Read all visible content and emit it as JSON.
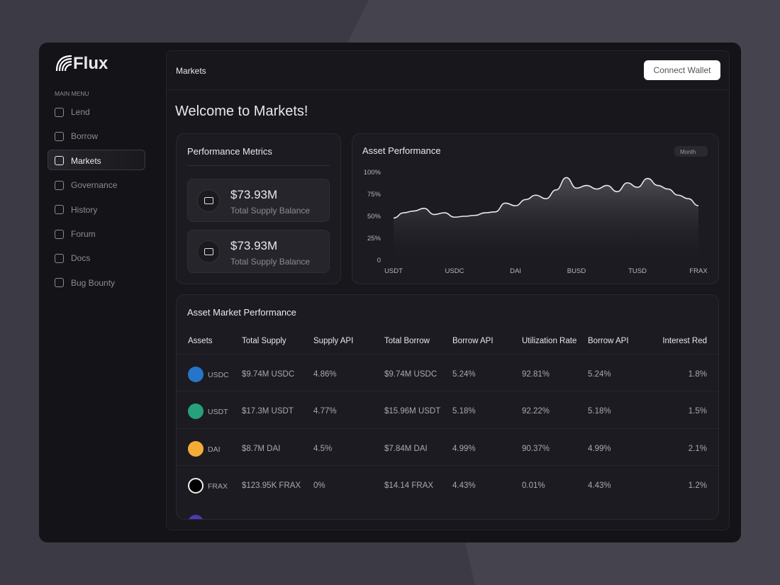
{
  "sidebar": {
    "brand": "Flux",
    "menu_label": "MAIN MENU",
    "items": [
      "Lend",
      "Borrow",
      "Markets",
      "Governance",
      "History",
      "Forum",
      "Docs",
      "Bug Bounty"
    ],
    "active": 2
  },
  "header": {
    "title": "Markets",
    "button": "Connect Wallet"
  },
  "welcome": "Welcome to Markets!",
  "metrics": {
    "title": "Performance Metrics",
    "cards": [
      {
        "value": "$73.93M",
        "label": "Total Supply Balance"
      },
      {
        "value": "$73.93M",
        "label": "Total Supply Balance"
      }
    ]
  },
  "chart_data": {
    "type": "area",
    "title": "Asset Performance",
    "period": "Month",
    "categories": [
      "USDT",
      null,
      null,
      null,
      null,
      null,
      "USDC",
      null,
      null,
      null,
      null,
      null,
      "DAI",
      null,
      null,
      null,
      null,
      null,
      "BUSD",
      null,
      null,
      null,
      null,
      null,
      "TUSD",
      null,
      null,
      null,
      null,
      null,
      "FRAX"
    ],
    "values": [
      48,
      54,
      56,
      59,
      52,
      54,
      49,
      50,
      51,
      54,
      55,
      65,
      62,
      69,
      74,
      70,
      80,
      94,
      82,
      85,
      81,
      85,
      78,
      88,
      83,
      93,
      85,
      81,
      74,
      70,
      62
    ],
    "ylim": [
      0,
      100
    ],
    "yticks": [
      {
        "value": 0,
        "label": "0"
      },
      {
        "value": 25,
        "label": "25%"
      },
      {
        "value": 50,
        "label": "50%"
      },
      {
        "value": 75,
        "label": "75%"
      },
      {
        "value": 100,
        "label": "100%"
      }
    ],
    "color": "#e8e8ec"
  },
  "table": {
    "title": "Asset Market Performance",
    "columns": [
      "Assets",
      "Total Supply",
      "Supply API",
      "Total Borrow",
      "Borrow API",
      "Utilization Rate",
      "Borrow API",
      "Interest Red"
    ],
    "rows": [
      [
        "USDC",
        "$9.74M USDC",
        "4.86%",
        "$9.74M USDC",
        "5.24%",
        "92.81%",
        "5.24%",
        "1.8%"
      ],
      [
        "USDT",
        "$17.3M USDT",
        "4.77%",
        "$15.96M USDT",
        "5.18%",
        "92.22%",
        "5.18%",
        "1.5%"
      ],
      [
        "DAI",
        "$8.7M DAI",
        "4.5%",
        "$7.84M DAI",
        "4.99%",
        "90.37%",
        "4.99%",
        "2.1%"
      ],
      [
        "FRAX",
        "$123.95K FRAX",
        "0%",
        "$14.14 FRAX",
        "4.43%",
        "0.01%",
        "4.43%",
        "1.2%"
      ]
    ]
  }
}
